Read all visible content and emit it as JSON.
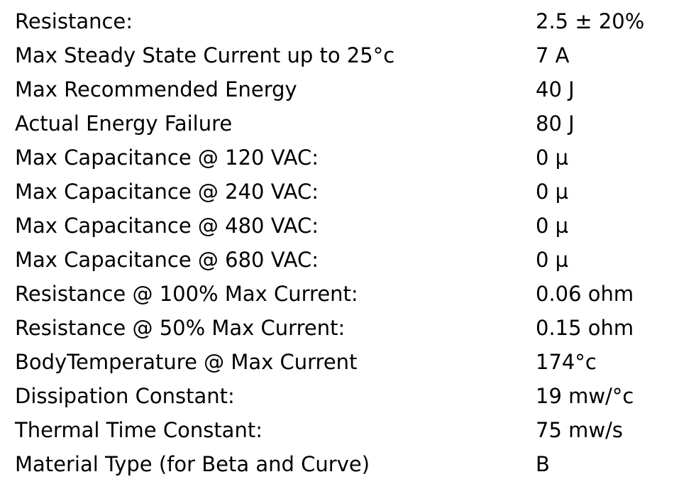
{
  "table": {
    "rows": [
      [
        "Resistance:",
        "2.5 ± 20%"
      ],
      [
        "Max Steady State Current up to 25°c",
        "7 A"
      ],
      [
        "Max Recommended Energy",
        "40 J"
      ],
      [
        "Actual Energy Failure",
        "80 J"
      ],
      [
        "Max Capacitance @ 120 VAC:",
        "0 µ"
      ],
      [
        "Max Capacitance @ 240 VAC:",
        "0 µ"
      ],
      [
        "Max Capacitance @ 480 VAC:",
        "0 µ"
      ],
      [
        "Max Capacitance @ 680 VAC:",
        "0 µ"
      ],
      [
        "Resistance @ 100% Max Current:",
        "0.06 ohm"
      ],
      [
        "Resistance @ 50% Max Current:",
        "0.15 ohm"
      ],
      [
        "BodyTemperature @ Max Current",
        "174°c"
      ],
      [
        "Dissipation Constant:",
        "19 mw/°c"
      ],
      [
        "Thermal Time Constant:",
        "75 mw/s"
      ],
      [
        "Material Type (for Beta and Curve)",
        "B"
      ]
    ]
  }
}
